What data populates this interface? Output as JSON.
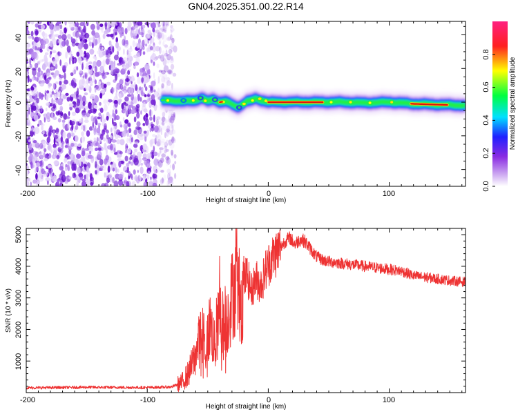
{
  "title": "GN04.2025.351.00.22.R14",
  "colors": {
    "series": "#ee3333",
    "spectrum_core": "#dd1111",
    "noise": "#7a2bd9",
    "axis": "#000000"
  },
  "chart_data": [
    {
      "type": "heatmap",
      "title": "GN04.2025.351.00.22.R14",
      "xlabel": "Height of straight line (km)",
      "ylabel": "Frequency (Hz)",
      "xlim": [
        -200,
        163
      ],
      "ylim": [
        -50,
        48
      ],
      "x_ticks": [
        -200,
        -100,
        0,
        100
      ],
      "y_ticks": [
        -40,
        -20,
        0,
        20,
        40
      ],
      "noise_region_x": [
        -200,
        -78
      ],
      "ridge": {
        "x": [
          -88,
          -80,
          -70,
          -60,
          -55,
          -50,
          -45,
          -40,
          -35,
          -30,
          -25,
          -22,
          -18,
          -14,
          -10,
          -6,
          -2,
          0,
          20,
          40,
          60,
          80,
          100,
          120,
          140,
          163
        ],
        "y": [
          1,
          1,
          0.5,
          1,
          2.5,
          0.5,
          1.5,
          0,
          0.5,
          -1.5,
          -3,
          -1.5,
          0.5,
          1,
          2,
          1,
          0.5,
          0,
          0,
          0,
          0,
          -0.5,
          0,
          -1,
          -1.5,
          -2
        ]
      },
      "colorbar": {
        "label": "Normalized spectral amplitude",
        "range": [
          0,
          1
        ],
        "ticks": [
          "0.0",
          "0.2",
          "0.4",
          "0.6",
          "0.8"
        ],
        "tick_values": [
          0,
          0.2,
          0.4,
          0.6,
          0.8
        ],
        "stops": [
          "#ffffff",
          "#8a2be2",
          "#2020ff",
          "#00e0ff",
          "#00ff40",
          "#ffff00",
          "#ff2020",
          "#ff2080"
        ]
      }
    },
    {
      "type": "line",
      "xlabel": "Height of straight line (km)",
      "ylabel": "SNR (10 * v/v)",
      "xlim": [
        -200,
        163
      ],
      "ylim": [
        0,
        5200
      ],
      "x_ticks": [
        -200,
        -100,
        0,
        100
      ],
      "y_ticks": [
        1000,
        2000,
        3000,
        4000,
        5000
      ],
      "series": [
        {
          "name": "SNR",
          "x": [
            -200,
            -150,
            -100,
            -80,
            -72,
            -66,
            -60,
            -56,
            -52,
            -48,
            -44,
            -40,
            -36,
            -32,
            -28,
            -22,
            -18,
            -14,
            -10,
            -6,
            -2,
            2,
            6,
            10,
            14,
            18,
            22,
            26,
            30,
            34,
            40,
            45,
            50,
            60,
            70,
            80,
            90,
            100,
            110,
            120,
            130,
            140,
            150,
            163
          ],
          "values": [
            150,
            170,
            160,
            180,
            300,
            600,
            1200,
            1800,
            1300,
            2200,
            1400,
            2600,
            1900,
            2700,
            3400,
            3000,
            3800,
            3200,
            3600,
            3400,
            3900,
            4200,
            4400,
            4600,
            4800,
            4900,
            4700,
            4850,
            4800,
            4600,
            4300,
            4200,
            4150,
            4100,
            4050,
            4000,
            3950,
            3900,
            3850,
            3700,
            3650,
            3600,
            3550,
            3500
          ]
        }
      ]
    }
  ]
}
